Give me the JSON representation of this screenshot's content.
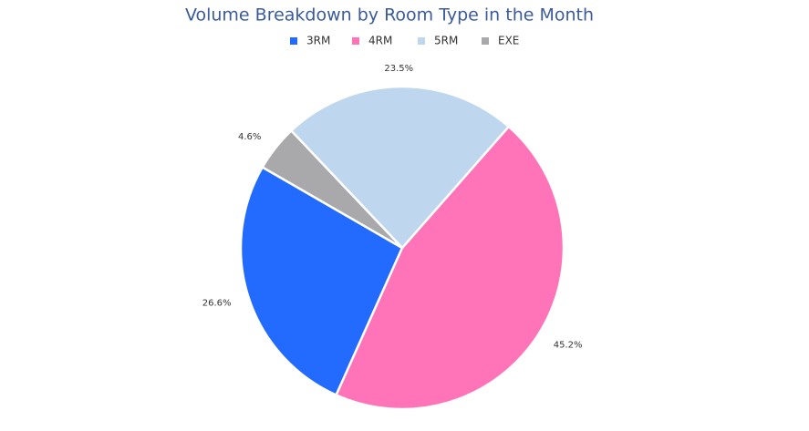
{
  "chart_data": {
    "type": "pie",
    "title": "Volume Breakdown by Room Type in the Month",
    "categories": [
      "3RM",
      "4RM",
      "5RM",
      "EXE"
    ],
    "values": [
      26.6,
      45.2,
      23.5,
      4.6
    ],
    "value_labels": [
      "26.6%",
      "45.2%",
      "23.5%",
      "4.6%"
    ],
    "colors": [
      "#236bfe",
      "#ff74b8",
      "#bed6ee",
      "#a9a9ac"
    ]
  }
}
